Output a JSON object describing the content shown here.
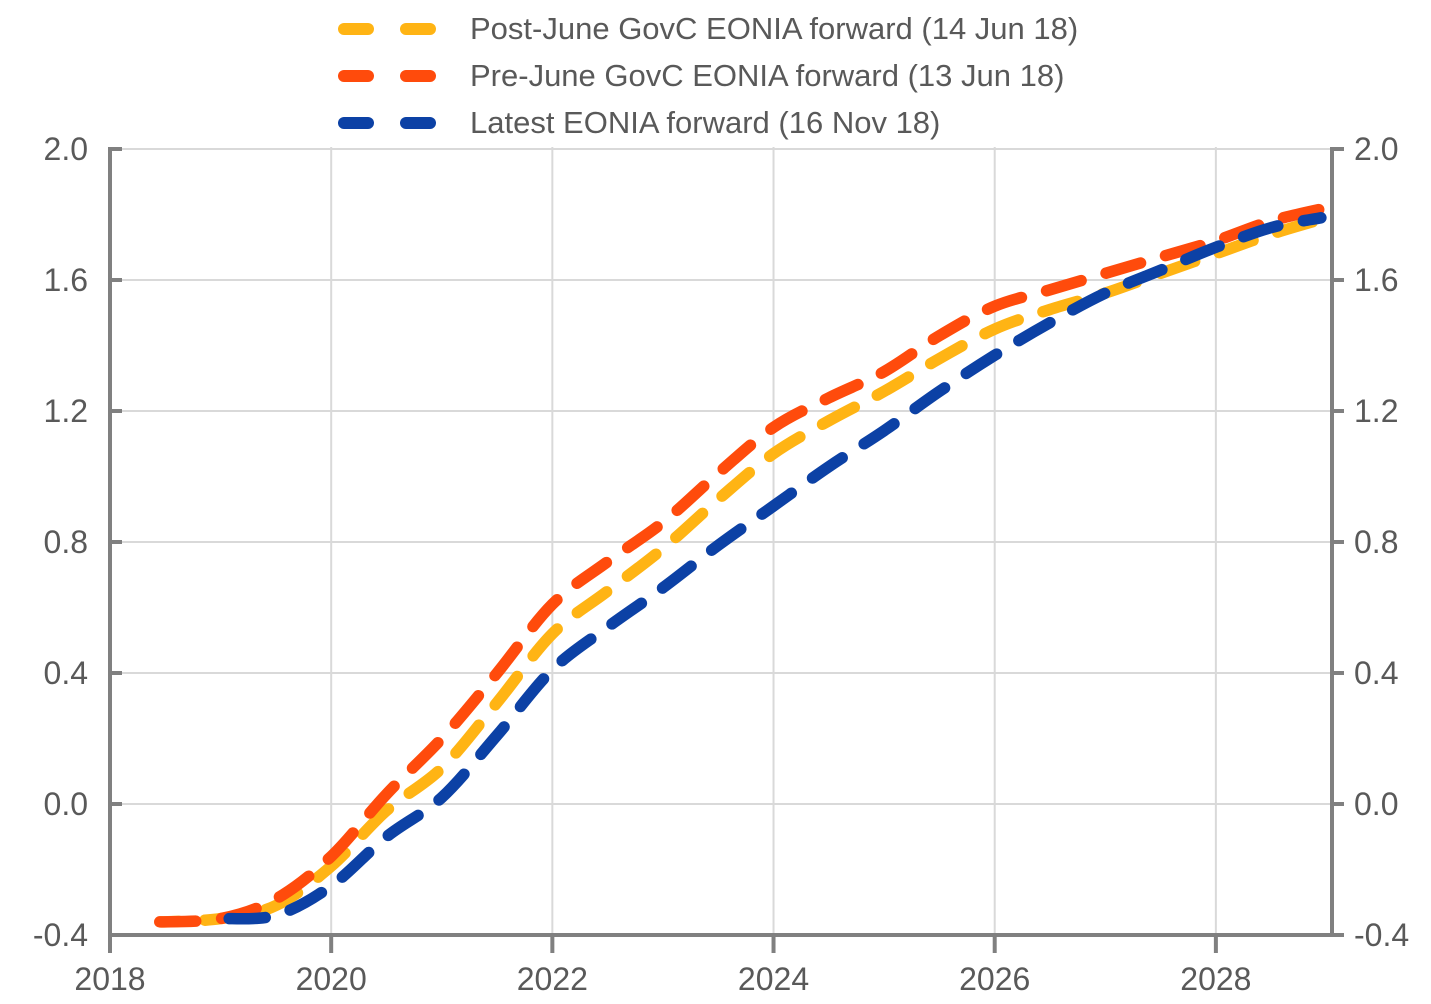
{
  "chart_data": {
    "type": "line",
    "title": "",
    "xlabel": "",
    "ylabel": "",
    "x_range": [
      2018,
      2029.05
    ],
    "y_range": [
      -0.4,
      2.0
    ],
    "grid": true,
    "legend_position": "top-left",
    "axes": {
      "y_tick_values": [
        2.0,
        1.6,
        1.2,
        0.8,
        0.4,
        0.0,
        -0.4
      ],
      "y_tick_labels_left": [
        "2.0",
        "1.6",
        "1.2",
        "0.8",
        "0.4",
        "0.0",
        "-0.4"
      ],
      "y_tick_labels_right": [
        "2.0",
        "1.6",
        "1.2",
        "0.8",
        "0.4",
        "0.0",
        "-0.4"
      ],
      "x_tick_values": [
        2018,
        2020,
        2022,
        2024,
        2026,
        2028
      ],
      "x_tick_labels": [
        "2018",
        "2020",
        "2022",
        "2024",
        "2026",
        "2028"
      ],
      "x_gridline_values": [
        2020,
        2022,
        2024,
        2026,
        2028
      ]
    },
    "colors": {
      "axis": "#808080",
      "grid": "#D9D9D9",
      "tick_label": "#595959",
      "legend_text": "#595959",
      "background": "#FFFFFF"
    },
    "series": [
      {
        "name": "Post-June GovC EONIA forward (14 Jun 18)",
        "color": "#FFB414",
        "style": "dashed",
        "points": [
          [
            2018.46,
            -0.36
          ],
          [
            2019.0,
            -0.35
          ],
          [
            2019.5,
            -0.31
          ],
          [
            2020.0,
            -0.19
          ],
          [
            2020.5,
            -0.02
          ],
          [
            2021.0,
            0.11
          ],
          [
            2021.5,
            0.31
          ],
          [
            2022.0,
            0.52
          ],
          [
            2022.5,
            0.65
          ],
          [
            2023.0,
            0.78
          ],
          [
            2023.5,
            0.93
          ],
          [
            2024.0,
            1.07
          ],
          [
            2024.5,
            1.17
          ],
          [
            2025.0,
            1.26
          ],
          [
            2025.5,
            1.36
          ],
          [
            2026.0,
            1.45
          ],
          [
            2026.5,
            1.51
          ],
          [
            2027.0,
            1.56
          ],
          [
            2027.5,
            1.62
          ],
          [
            2028.0,
            1.68
          ],
          [
            2028.5,
            1.74
          ],
          [
            2029.0,
            1.79
          ]
        ]
      },
      {
        "name": "Pre-June GovC EONIA forward (13 Jun 18)",
        "color": "#FF4B0C",
        "style": "dashed",
        "points": [
          [
            2018.45,
            -0.36
          ],
          [
            2019.0,
            -0.35
          ],
          [
            2019.5,
            -0.29
          ],
          [
            2020.0,
            -0.16
          ],
          [
            2020.5,
            0.03
          ],
          [
            2021.0,
            0.2
          ],
          [
            2021.5,
            0.4
          ],
          [
            2022.0,
            0.61
          ],
          [
            2022.5,
            0.74
          ],
          [
            2023.0,
            0.86
          ],
          [
            2023.5,
            1.01
          ],
          [
            2024.0,
            1.15
          ],
          [
            2024.5,
            1.24
          ],
          [
            2025.0,
            1.32
          ],
          [
            2025.5,
            1.43
          ],
          [
            2026.0,
            1.52
          ],
          [
            2026.5,
            1.57
          ],
          [
            2027.0,
            1.62
          ],
          [
            2027.5,
            1.67
          ],
          [
            2028.0,
            1.72
          ],
          [
            2028.5,
            1.78
          ],
          [
            2029.0,
            1.82
          ]
        ]
      },
      {
        "name": "Latest EONIA forward (16 Nov 18)",
        "color": "#0C41A5",
        "style": "dashed",
        "points": [
          [
            2018.88,
            -0.35
          ],
          [
            2019.0,
            -0.35
          ],
          [
            2019.5,
            -0.34
          ],
          [
            2020.0,
            -0.25
          ],
          [
            2020.5,
            -0.1
          ],
          [
            2021.0,
            0.02
          ],
          [
            2021.5,
            0.21
          ],
          [
            2022.0,
            0.41
          ],
          [
            2022.5,
            0.54
          ],
          [
            2023.0,
            0.66
          ],
          [
            2023.5,
            0.79
          ],
          [
            2024.0,
            0.91
          ],
          [
            2024.5,
            1.03
          ],
          [
            2025.0,
            1.14
          ],
          [
            2025.5,
            1.26
          ],
          [
            2026.0,
            1.37
          ],
          [
            2026.5,
            1.47
          ],
          [
            2027.0,
            1.56
          ],
          [
            2027.5,
            1.63
          ],
          [
            2028.0,
            1.7
          ],
          [
            2028.5,
            1.76
          ],
          [
            2028.95,
            1.79
          ]
        ]
      }
    ]
  }
}
